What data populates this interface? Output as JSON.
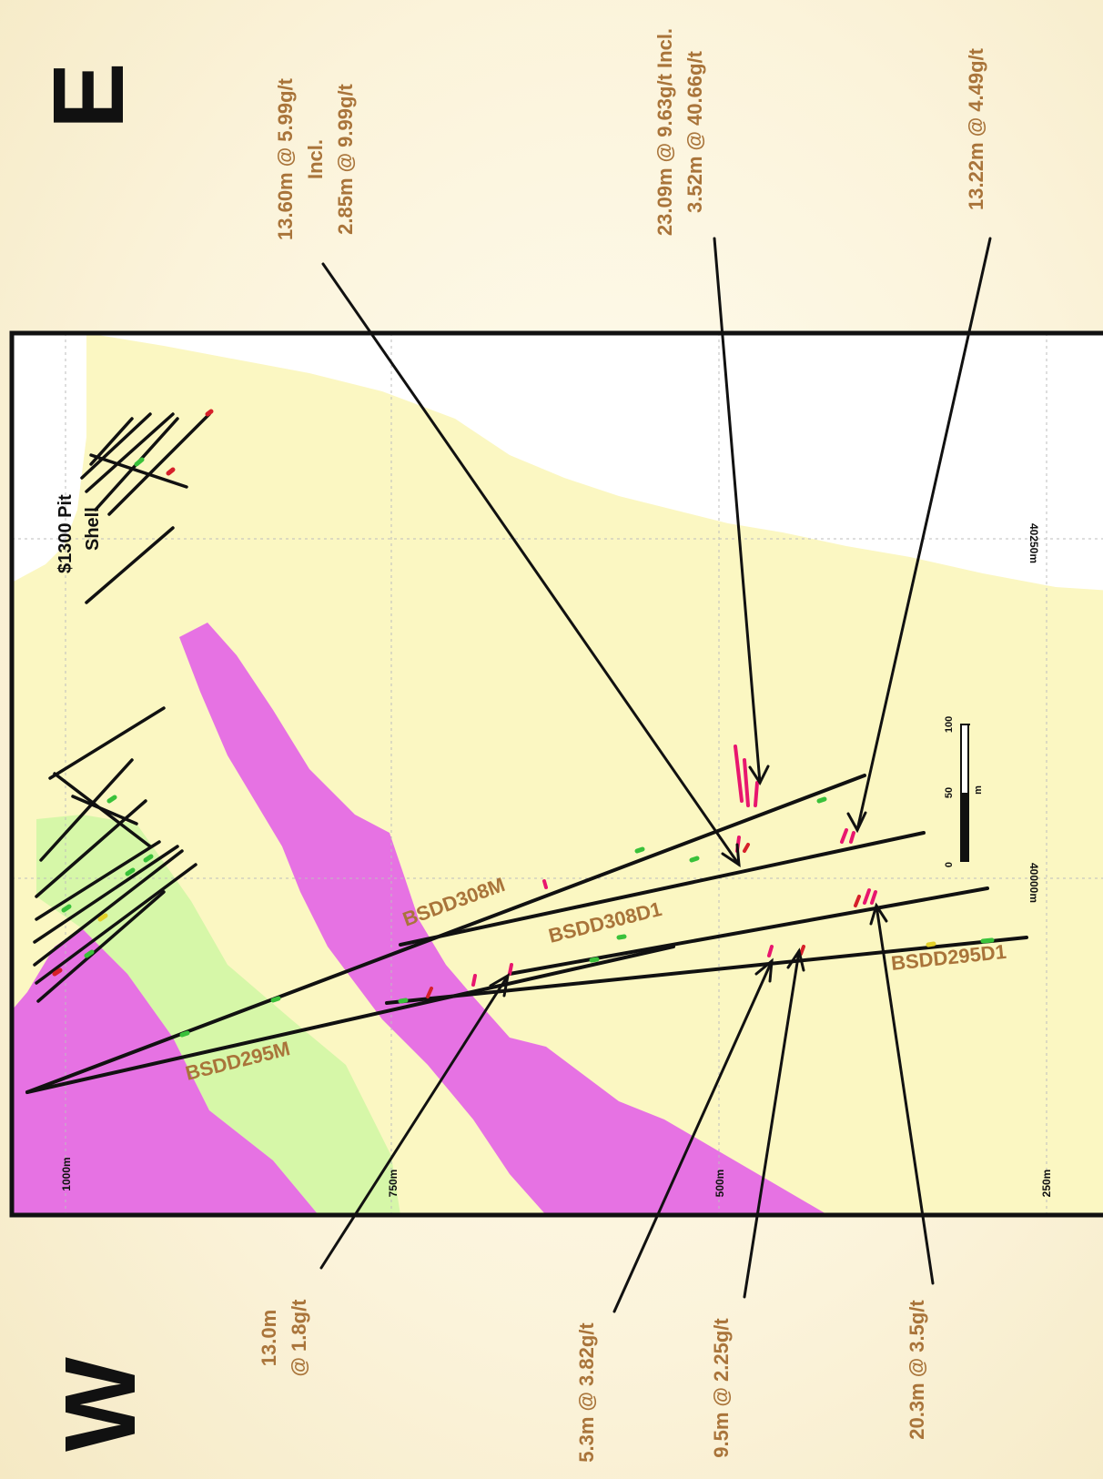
{
  "directions": {
    "east": "E",
    "west": "W"
  },
  "pit_shell_label": [
    "$1300 Pit",
    "Shell"
  ],
  "grid_labels": {
    "easting": [
      "40250m",
      "40000m"
    ],
    "elevation": [
      "1000m",
      "750m",
      "500m",
      "250m"
    ]
  },
  "scale_bar": {
    "ticks": [
      "0",
      "50",
      "100"
    ],
    "unit": "m"
  },
  "drill_holes": [
    "BSDD308M",
    "BSDD308D1",
    "BSDD295M",
    "BSDD295D1"
  ],
  "callouts_top": [
    {
      "lines": [
        "13.60m @ 5.99g/t",
        "Incl.",
        "2.85m @ 9.99g/t"
      ]
    },
    {
      "lines": [
        "23.09m @ 9.63g/t  Incl.",
        "3.52m @ 40.66g/t"
      ]
    },
    {
      "lines": [
        "13.22m @ 4.49g/t"
      ]
    }
  ],
  "callouts_bottom": [
    {
      "lines": [
        "13.0m",
        "@ 1.8g/t"
      ]
    },
    {
      "lines": [
        "5.3m @ 3.82g/t"
      ]
    },
    {
      "lines": [
        "9.5m @ 2.25g/t"
      ]
    },
    {
      "lines": [
        "20.3m @ 3.5g/t"
      ]
    }
  ],
  "colors": {
    "host_rock": "#fbf7c2",
    "intrusive_magenta": "#e672e3",
    "intrusive_green": "#d6f7a8",
    "air": "#ffffff",
    "drill_trace": "#111111",
    "label_brown": "#a9743a",
    "assay_high": "#e8166e"
  }
}
